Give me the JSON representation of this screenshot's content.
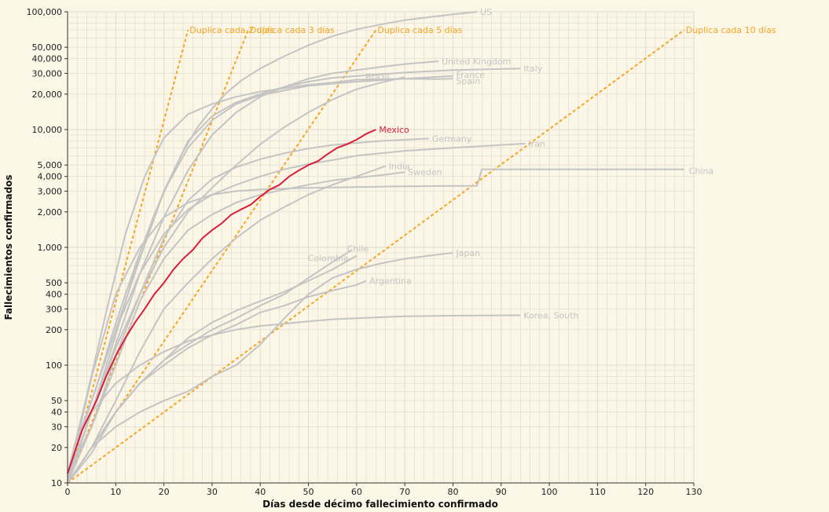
{
  "chart_data": {
    "type": "line",
    "xlabel": "Días desde décimo fallecimiento confirmado",
    "ylabel": "Fallecimientos confirmados",
    "xlim": [
      0,
      130
    ],
    "ylim": [
      10,
      100000
    ],
    "yscale": "log",
    "grid": true,
    "x_ticks": [
      0,
      10,
      20,
      30,
      40,
      50,
      60,
      70,
      80,
      90,
      100,
      110,
      120,
      130
    ],
    "x_tick_labels": [
      "0",
      "10",
      "20",
      "30",
      "40",
      "50",
      "60",
      "70",
      "80",
      "90",
      "100",
      "110",
      "120",
      "130"
    ],
    "y_ticks": [
      10,
      20,
      30,
      40,
      50,
      100,
      200,
      300,
      400,
      500,
      1000,
      2000,
      3000,
      4000,
      5000,
      10000,
      20000,
      30000,
      40000,
      50000,
      100000
    ],
    "y_tick_labels": [
      "10",
      "20",
      "30",
      "40",
      "50",
      "100",
      "200",
      "300",
      "400",
      "500",
      "1,000",
      "2,000",
      "3,000",
      "4,000",
      "5,000",
      "10,000",
      "20,000",
      "30,000",
      "40,000",
      "50,000",
      "100,000"
    ],
    "highlight": "Mexico",
    "colors": {
      "background": "#fbf6e6",
      "series": "#c4c4c4",
      "highlight": "#d81e3c",
      "reference": "#f5a623",
      "grid": "#dedad0"
    },
    "reference_lines": [
      {
        "name": "Duplica cada 2 días",
        "doubling_days": 2,
        "x": [
          0,
          25
        ],
        "y": [
          10,
          70000
        ]
      },
      {
        "name": "Duplica cada 3 días",
        "doubling_days": 3,
        "x": [
          0,
          37.5
        ],
        "y": [
          10,
          70000
        ]
      },
      {
        "name": "Duplica cada 5 días",
        "doubling_days": 5,
        "x": [
          0,
          64
        ],
        "y": [
          10,
          70000
        ]
      },
      {
        "name": "Duplica cada 10 días",
        "doubling_days": 10,
        "x": [
          0,
          128
        ],
        "y": [
          10,
          70000
        ]
      }
    ],
    "series": [
      {
        "name": "US",
        "x": [
          0,
          3,
          6,
          9,
          12,
          15,
          18,
          21,
          24,
          27,
          30,
          33,
          36,
          40,
          45,
          50,
          55,
          60,
          65,
          70,
          75,
          80,
          85
        ],
        "y": [
          12,
          30,
          65,
          170,
          400,
          900,
          1900,
          3600,
          6500,
          10500,
          15000,
          20500,
          26000,
          33000,
          42000,
          52000,
          62000,
          71000,
          78000,
          85000,
          90000,
          95000,
          100000
        ]
      },
      {
        "name": "United Kingdom",
        "x": [
          0,
          5,
          10,
          15,
          20,
          25,
          30,
          35,
          40,
          45,
          50,
          55,
          60,
          65,
          70,
          77
        ],
        "y": [
          11,
          40,
          150,
          600,
          1800,
          4500,
          9000,
          14000,
          19000,
          23000,
          27000,
          30000,
          32000,
          34000,
          36000,
          38000
        ]
      },
      {
        "name": "Italy",
        "x": [
          0,
          5,
          10,
          15,
          20,
          25,
          30,
          35,
          40,
          45,
          50,
          55,
          60,
          65,
          70,
          80,
          94
        ],
        "y": [
          12,
          50,
          200,
          800,
          3000,
          8000,
          13000,
          17000,
          20000,
          23000,
          25500,
          27500,
          28500,
          29500,
          30500,
          32000,
          33000
        ]
      },
      {
        "name": "France",
        "x": [
          0,
          5,
          10,
          15,
          20,
          25,
          30,
          35,
          40,
          45,
          50,
          55,
          60,
          70,
          80
        ],
        "y": [
          11,
          40,
          180,
          900,
          3000,
          7000,
          12000,
          16500,
          19500,
          21500,
          23500,
          24500,
          25500,
          27000,
          28500
        ]
      },
      {
        "name": "Spain",
        "x": [
          0,
          4,
          8,
          12,
          16,
          20,
          25,
          30,
          35,
          40,
          45,
          50,
          55,
          60,
          70,
          77,
          80
        ],
        "y": [
          12,
          55,
          280,
          1300,
          4000,
          8500,
          13500,
          16500,
          19000,
          21000,
          22500,
          24000,
          25000,
          26500,
          27000,
          26800,
          27100
        ]
      },
      {
        "name": "Brazil",
        "x": [
          0,
          5,
          10,
          15,
          20,
          25,
          30,
          35,
          40,
          45,
          50,
          55,
          60,
          65,
          70
        ],
        "y": [
          11,
          40,
          140,
          400,
          1000,
          2000,
          3200,
          5000,
          7500,
          10500,
          14000,
          18000,
          22000,
          25000,
          27900
        ]
      },
      {
        "name": "Germany",
        "x": [
          0,
          5,
          10,
          15,
          20,
          25,
          30,
          35,
          40,
          45,
          50,
          55,
          60,
          65,
          70,
          75
        ],
        "y": [
          12,
          30,
          120,
          400,
          1200,
          2500,
          3800,
          4800,
          5600,
          6300,
          6900,
          7400,
          7700,
          8000,
          8200,
          8400
        ]
      },
      {
        "name": "Iran",
        "x": [
          0,
          5,
          10,
          15,
          20,
          25,
          30,
          35,
          40,
          45,
          50,
          55,
          60,
          70,
          80,
          90,
          95
        ],
        "y": [
          12,
          50,
          200,
          600,
          1300,
          2100,
          2800,
          3400,
          4000,
          4600,
          5100,
          5500,
          6000,
          6600,
          7000,
          7400,
          7600
        ]
      },
      {
        "name": "India",
        "x": [
          0,
          5,
          10,
          15,
          20,
          25,
          30,
          35,
          40,
          45,
          50,
          55,
          60,
          66
        ],
        "y": [
          10,
          20,
          50,
          130,
          300,
          500,
          800,
          1200,
          1700,
          2200,
          2800,
          3400,
          4000,
          4900
        ]
      },
      {
        "name": "Sweden",
        "x": [
          0,
          5,
          10,
          15,
          20,
          25,
          30,
          35,
          40,
          45,
          50,
          55,
          60,
          65,
          70
        ],
        "y": [
          10,
          30,
          100,
          350,
          800,
          1400,
          1900,
          2400,
          2800,
          3100,
          3400,
          3700,
          3900,
          4100,
          4350
        ]
      },
      {
        "name": "China",
        "x": [
          0,
          5,
          10,
          15,
          20,
          25,
          30,
          35,
          40,
          50,
          60,
          70,
          80,
          85,
          86,
          100,
          110,
          128
        ],
        "y": [
          10,
          80,
          400,
          1000,
          1800,
          2400,
          2800,
          3000,
          3100,
          3200,
          3250,
          3300,
          3320,
          3330,
          4600,
          4600,
          4600,
          4600
        ]
      },
      {
        "name": "Chile",
        "x": [
          0,
          5,
          10,
          15,
          20,
          25,
          30,
          35,
          40,
          45,
          50,
          55,
          59
        ],
        "y": [
          10,
          18,
          40,
          70,
          110,
          150,
          200,
          250,
          320,
          400,
          550,
          750,
          950
        ]
      },
      {
        "name": "Colombia",
        "x": [
          0,
          5,
          10,
          15,
          20,
          25,
          30,
          35,
          40,
          45,
          50,
          55,
          60
        ],
        "y": [
          10,
          20,
          40,
          70,
          110,
          170,
          230,
          290,
          350,
          420,
          520,
          650,
          850
        ]
      },
      {
        "name": "Japan",
        "x": [
          0,
          5,
          10,
          15,
          20,
          25,
          30,
          35,
          40,
          45,
          50,
          55,
          60,
          65,
          70,
          75,
          80
        ],
        "y": [
          10,
          20,
          30,
          40,
          50,
          60,
          80,
          100,
          150,
          250,
          400,
          550,
          650,
          730,
          800,
          850,
          900
        ]
      },
      {
        "name": "Argentina",
        "x": [
          0,
          5,
          10,
          15,
          20,
          25,
          30,
          35,
          40,
          45,
          50,
          55,
          60,
          62
        ],
        "y": [
          10,
          20,
          40,
          70,
          100,
          140,
          180,
          220,
          280,
          320,
          380,
          430,
          480,
          520
        ]
      },
      {
        "name": "Korea, South",
        "x": [
          0,
          5,
          10,
          15,
          20,
          25,
          30,
          35,
          40,
          45,
          50,
          55,
          60,
          65,
          70,
          80,
          94
        ],
        "y": [
          10,
          40,
          70,
          100,
          130,
          160,
          180,
          200,
          215,
          225,
          235,
          245,
          250,
          255,
          260,
          263,
          265
        ]
      },
      {
        "name": "Mexico",
        "x": [
          0,
          3,
          6,
          8,
          10,
          12,
          14,
          16,
          18,
          20,
          22,
          24,
          26,
          28,
          30,
          32,
          34,
          36,
          38,
          40,
          42,
          44,
          46,
          48,
          50,
          52,
          54,
          56,
          58,
          60,
          62,
          64
        ],
        "y": [
          12,
          28,
          50,
          80,
          120,
          170,
          230,
          300,
          400,
          500,
          650,
          800,
          950,
          1200,
          1400,
          1600,
          1900,
          2100,
          2300,
          2700,
          3100,
          3400,
          4000,
          4500,
          5000,
          5400,
          6200,
          7000,
          7500,
          8200,
          9200,
          10000
        ]
      }
    ]
  }
}
